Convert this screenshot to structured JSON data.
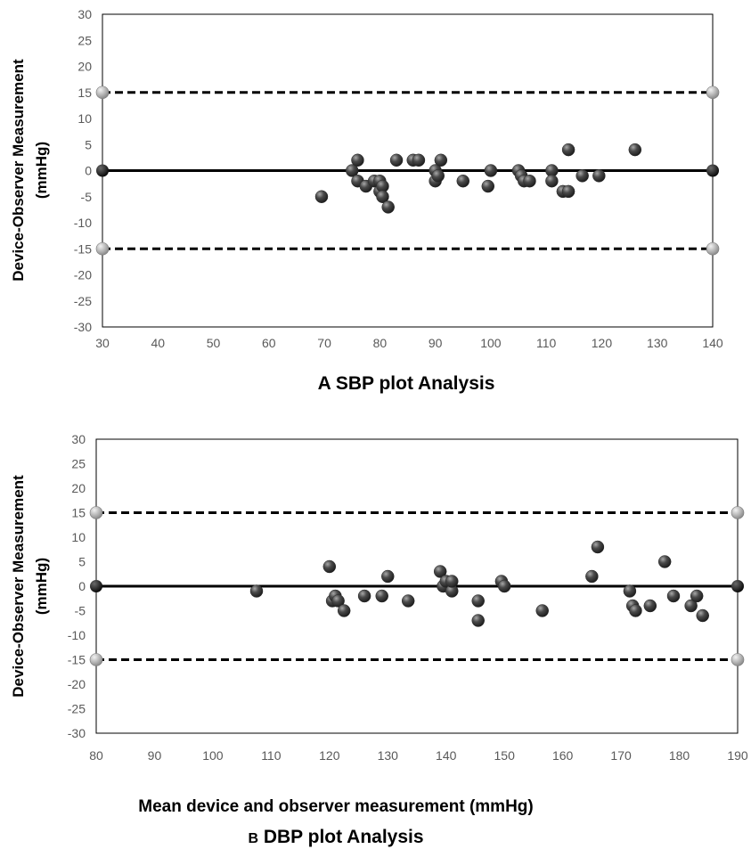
{
  "chart_data": [
    {
      "type": "scatter",
      "panel": "A",
      "caption": "A SBP plot Analysis",
      "xlabel": "",
      "ylabel_line1": "Device-Observer Measurement",
      "ylabel_line2": "(mmHg)",
      "xlim": [
        30,
        140
      ],
      "ylim": [
        -30,
        30
      ],
      "xticks": [
        30,
        40,
        50,
        60,
        70,
        80,
        90,
        100,
        110,
        120,
        130,
        140
      ],
      "yticks": [
        30,
        25,
        20,
        15,
        10,
        5,
        0,
        -5,
        -10,
        -15,
        -20,
        -25,
        -30
      ],
      "mean_line": 0,
      "limits_of_agreement": [
        15,
        -15
      ],
      "grid": false,
      "colors": {
        "points": "#3c3c3c",
        "mean_marker": "#1a1a1a",
        "limit_marker": "#bdbdbd",
        "line": "#000000"
      },
      "points": [
        {
          "x": 69.5,
          "y": -5
        },
        {
          "x": 75,
          "y": 0
        },
        {
          "x": 76,
          "y": 2
        },
        {
          "x": 76,
          "y": -2
        },
        {
          "x": 77.5,
          "y": -3
        },
        {
          "x": 79,
          "y": -2
        },
        {
          "x": 80,
          "y": -2
        },
        {
          "x": 80,
          "y": -4
        },
        {
          "x": 80.5,
          "y": -3
        },
        {
          "x": 80.5,
          "y": -5
        },
        {
          "x": 81.5,
          "y": -7
        },
        {
          "x": 83,
          "y": 2
        },
        {
          "x": 86,
          "y": 2
        },
        {
          "x": 87,
          "y": 2
        },
        {
          "x": 90,
          "y": 0
        },
        {
          "x": 90,
          "y": -2
        },
        {
          "x": 90.5,
          "y": -1
        },
        {
          "x": 91,
          "y": 2
        },
        {
          "x": 95,
          "y": -2
        },
        {
          "x": 99.5,
          "y": -3
        },
        {
          "x": 100,
          "y": 0
        },
        {
          "x": 105,
          "y": 0
        },
        {
          "x": 105.5,
          "y": -1
        },
        {
          "x": 106,
          "y": -2
        },
        {
          "x": 107,
          "y": -2
        },
        {
          "x": 111,
          "y": 0
        },
        {
          "x": 111,
          "y": -2
        },
        {
          "x": 113,
          "y": -4
        },
        {
          "x": 114,
          "y": -4
        },
        {
          "x": 114,
          "y": 4
        },
        {
          "x": 116.5,
          "y": -1
        },
        {
          "x": 119.5,
          "y": -1
        },
        {
          "x": 126,
          "y": 4
        }
      ]
    },
    {
      "type": "scatter",
      "panel": "B",
      "caption": "B DBP plot Analysis",
      "caption_letter": "B",
      "caption_rest": " DBP plot Analysis",
      "xlabel": "Mean device and observer measurement (mmHg)",
      "ylabel_line1": "Device-Observer Measurement",
      "ylabel_line2": "(mmHg)",
      "xlim": [
        80,
        190
      ],
      "ylim": [
        -30,
        30
      ],
      "xticks": [
        80,
        90,
        100,
        110,
        120,
        130,
        140,
        150,
        160,
        170,
        180,
        190
      ],
      "yticks": [
        30,
        25,
        20,
        15,
        10,
        5,
        0,
        -5,
        -10,
        -15,
        -20,
        -25,
        -30
      ],
      "mean_line": 0,
      "limits_of_agreement": [
        15,
        -15
      ],
      "grid": false,
      "colors": {
        "points": "#3c3c3c",
        "mean_marker": "#1a1a1a",
        "limit_marker": "#bdbdbd",
        "line": "#000000"
      },
      "points": [
        {
          "x": 107.5,
          "y": -1
        },
        {
          "x": 120,
          "y": 4
        },
        {
          "x": 120.5,
          "y": -3
        },
        {
          "x": 121,
          "y": -2
        },
        {
          "x": 121.5,
          "y": -3
        },
        {
          "x": 122.5,
          "y": -5
        },
        {
          "x": 126,
          "y": -2
        },
        {
          "x": 129,
          "y": -2
        },
        {
          "x": 130,
          "y": 2
        },
        {
          "x": 133.5,
          "y": -3
        },
        {
          "x": 139,
          "y": 3
        },
        {
          "x": 139.5,
          "y": 0
        },
        {
          "x": 140,
          "y": 1
        },
        {
          "x": 141,
          "y": -1
        },
        {
          "x": 141,
          "y": 1
        },
        {
          "x": 145.5,
          "y": -3
        },
        {
          "x": 145.5,
          "y": -7
        },
        {
          "x": 149.5,
          "y": 1
        },
        {
          "x": 150,
          "y": 0
        },
        {
          "x": 156.5,
          "y": -5
        },
        {
          "x": 165,
          "y": 2
        },
        {
          "x": 166,
          "y": 8
        },
        {
          "x": 171.5,
          "y": -1
        },
        {
          "x": 172,
          "y": -4
        },
        {
          "x": 172.5,
          "y": -5
        },
        {
          "x": 175,
          "y": -4
        },
        {
          "x": 177.5,
          "y": 5
        },
        {
          "x": 179,
          "y": -2
        },
        {
          "x": 182,
          "y": -4
        },
        {
          "x": 183,
          "y": -2
        },
        {
          "x": 184,
          "y": -6
        }
      ]
    }
  ]
}
